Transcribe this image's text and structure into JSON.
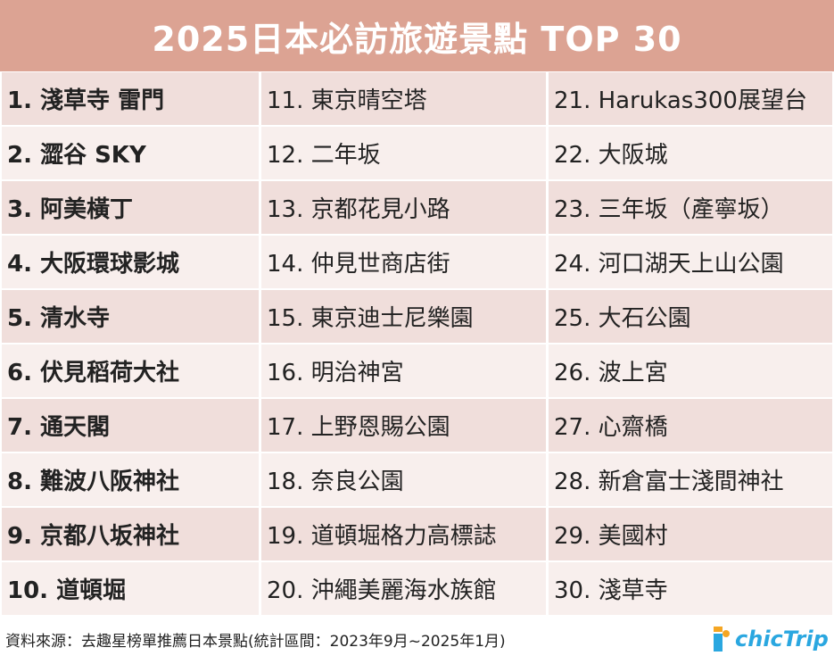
{
  "title": "2025日本必訪旅遊景點 TOP 30",
  "columns": [
    {
      "bold": true,
      "items": [
        "1. 淺草寺 雷門",
        "2. 澀谷 SKY",
        "3. 阿美橫丁",
        "4. 大阪環球影城",
        "5. 清水寺",
        "6. 伏見稻荷大社",
        "7. 通天閣",
        "8. 難波八阪神社",
        "9. 京都八坂神社",
        "10. 道頓堀"
      ]
    },
    {
      "bold": false,
      "items": [
        "11. 東京晴空塔",
        "12. 二年坂",
        "13. 京都花見小路",
        "14. 仲見世商店街",
        "15. 東京迪士尼樂園",
        "16. 明治神宮",
        "17. 上野恩賜公園",
        "18. 奈良公園",
        "19. 道頓堀格力高標誌",
        "20. 沖繩美麗海水族館"
      ]
    },
    {
      "bold": false,
      "items": [
        "21. Harukas300展望台",
        "22. 大阪城",
        "23. 三年坂（產寧坂）",
        "24. 河口湖天上山公園",
        "25. 大石公園",
        "26. 波上宮",
        "27. 心齋橋",
        "28. 新倉富士淺間神社",
        "29. 美國村",
        "30. 淺草寺"
      ]
    }
  ],
  "footer": {
    "source": "資料來源：去趣星榜單推薦日本景點(統計區間：2023年9月~2025年1月)",
    "logo_text": "chicTrip",
    "logo_icon": "chictrip-logo-icon"
  },
  "colors": {
    "title_bg": "#dca393",
    "row_odd": "#f0dedb",
    "row_even": "#f8efed",
    "logo_blue": "#2aa7e0",
    "logo_orange": "#f5a623"
  }
}
